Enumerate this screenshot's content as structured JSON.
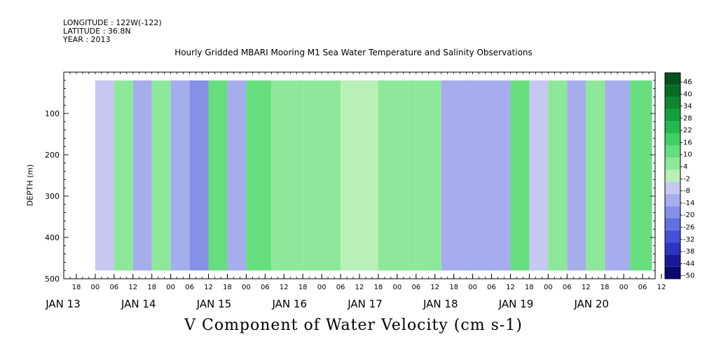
{
  "header": {
    "longitude": "LONGITUDE : 122W(-122)",
    "latitude": "LATITUDE : 36.8N",
    "year": "YEAR : 2013"
  },
  "chart_data": {
    "type": "heatmap",
    "title": "Hourly Gridded MBARI Mooring M1 Sea Water Temperature and Salinity Observations",
    "xlabel": "V Component of Water Velocity (cm s-1)",
    "ylabel": "DEPTH (m)",
    "x_range_hours": [
      -10,
      178
    ],
    "x_start": "2013-01-13T00:00",
    "ylim": [
      500,
      0
    ],
    "y_ticks": [
      100,
      200,
      300,
      400,
      500
    ],
    "x_hour_ticks": [
      "18",
      "00",
      "06",
      "12",
      "18",
      "00",
      "06",
      "12",
      "18",
      "00",
      "06",
      "12",
      "18",
      "00",
      "06",
      "12",
      "18",
      "00",
      "06",
      "12",
      "18",
      "00",
      "06",
      "12",
      "18",
      "00",
      "06",
      "12",
      "18",
      "00",
      "06",
      "12"
    ],
    "day_labels": [
      "JAN 13",
      "JAN 14",
      "JAN 15",
      "JAN 16",
      "JAN 17",
      "JAN 18",
      "JAN 19",
      "JAN 20"
    ],
    "colorbar_labels": [
      "46",
      "40",
      "34",
      "28",
      "22",
      "16",
      "10",
      "4",
      "-2",
      "-8",
      "-14",
      "-20",
      "-26",
      "-32",
      "-38",
      "-44",
      "-50"
    ],
    "colorbar_range": [
      -50,
      52
    ],
    "columns": [
      {
        "hour": -12,
        "v": -10
      },
      {
        "hour": 0,
        "v": -8
      },
      {
        "hour": 6,
        "v": 8
      },
      {
        "hour": 12,
        "v": -14
      },
      {
        "hour": 18,
        "v": 6
      },
      {
        "hour": 24,
        "v": -10
      },
      {
        "hour": 30,
        "v": -18
      },
      {
        "hour": 36,
        "v": 14
      },
      {
        "hour": 42,
        "v": -12
      },
      {
        "hour": 48,
        "v": 10
      },
      {
        "hour": 56,
        "v": 8
      },
      {
        "hour": 66,
        "v": 6
      },
      {
        "hour": 78,
        "v": 2
      },
      {
        "hour": 90,
        "v": 4
      },
      {
        "hour": 102,
        "v": 6
      },
      {
        "hour": 110,
        "v": -14
      },
      {
        "hour": 118,
        "v": -12
      },
      {
        "hour": 126,
        "v": -10
      },
      {
        "hour": 132,
        "v": 10
      },
      {
        "hour": 138,
        "v": -8
      },
      {
        "hour": 144,
        "v": 8
      },
      {
        "hour": 150,
        "v": -12
      },
      {
        "hour": 156,
        "v": 6
      },
      {
        "hour": 162,
        "v": -10
      },
      {
        "hour": 170,
        "v": 12
      },
      {
        "hour": 176,
        "v": 14
      }
    ],
    "colors": [
      "#0a0a6e",
      "#1a1a99",
      "#2a35c2",
      "#4650d8",
      "#6470e0",
      "#8590e6",
      "#a5adec",
      "#c4c8f2",
      "#b8f0b8",
      "#8ee89a",
      "#66de7e",
      "#3fd064",
      "#22b84e",
      "#13a03c",
      "#0c862f",
      "#066c24",
      "#03521b"
    ]
  }
}
